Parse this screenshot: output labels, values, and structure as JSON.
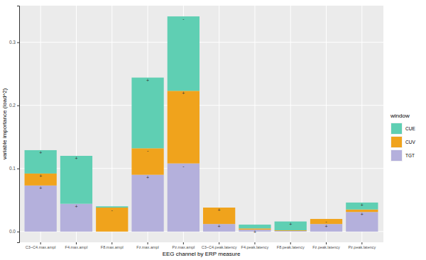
{
  "chart_data": {
    "type": "bar",
    "stacked": true,
    "x_label": "EEG channel by ERP measure",
    "y_label": "variable importance (load^2)",
    "legend_title": "window",
    "legend": "right",
    "grid": true,
    "categories": [
      "C3~C4.max.ampl",
      "F4.max.ampl",
      "F8.max.ampl",
      "Fz.max.ampl",
      "Pz.max.ampl",
      "C3~C4.peak.latency",
      "F4.peak.latency",
      "F8.peak.latency",
      "Fz.peak.latency",
      "Pz.peak.latency"
    ],
    "ylim": [
      -0.017,
      0.358
    ],
    "yticks": [
      {
        "value": 0,
        "label": "0.0"
      },
      0.1,
      0.2,
      0.3
    ],
    "series": [
      {
        "name": "CUE",
        "color": "#5fcfb3",
        "values": [
          0.037,
          0.076,
          0.002,
          0.112,
          0.118,
          0,
          0.006,
          0.014,
          0,
          0.011
        ],
        "signs": [
          "+",
          "+",
          null,
          "+",
          "-",
          null,
          null,
          "+",
          null,
          "+"
        ]
      },
      {
        "name": "CUV",
        "color": "#f0a31c",
        "values": [
          0.019,
          0,
          0.038,
          0.042,
          0.115,
          0.026,
          0.002,
          0.001,
          0.008,
          0.004
        ],
        "signs": [
          "+",
          null,
          "-",
          "-",
          "+",
          "+",
          null,
          null,
          "-",
          null
        ]
      },
      {
        "name": "TGT",
        "color": "#b4b0dc",
        "values": [
          0.073,
          0.044,
          0,
          0.09,
          0.108,
          0.012,
          0.003,
          0.001,
          0.012,
          0.031
        ],
        "signs": [
          "+",
          "+",
          null,
          "+",
          "-",
          "+",
          "+",
          null,
          "+",
          "+"
        ]
      }
    ]
  }
}
